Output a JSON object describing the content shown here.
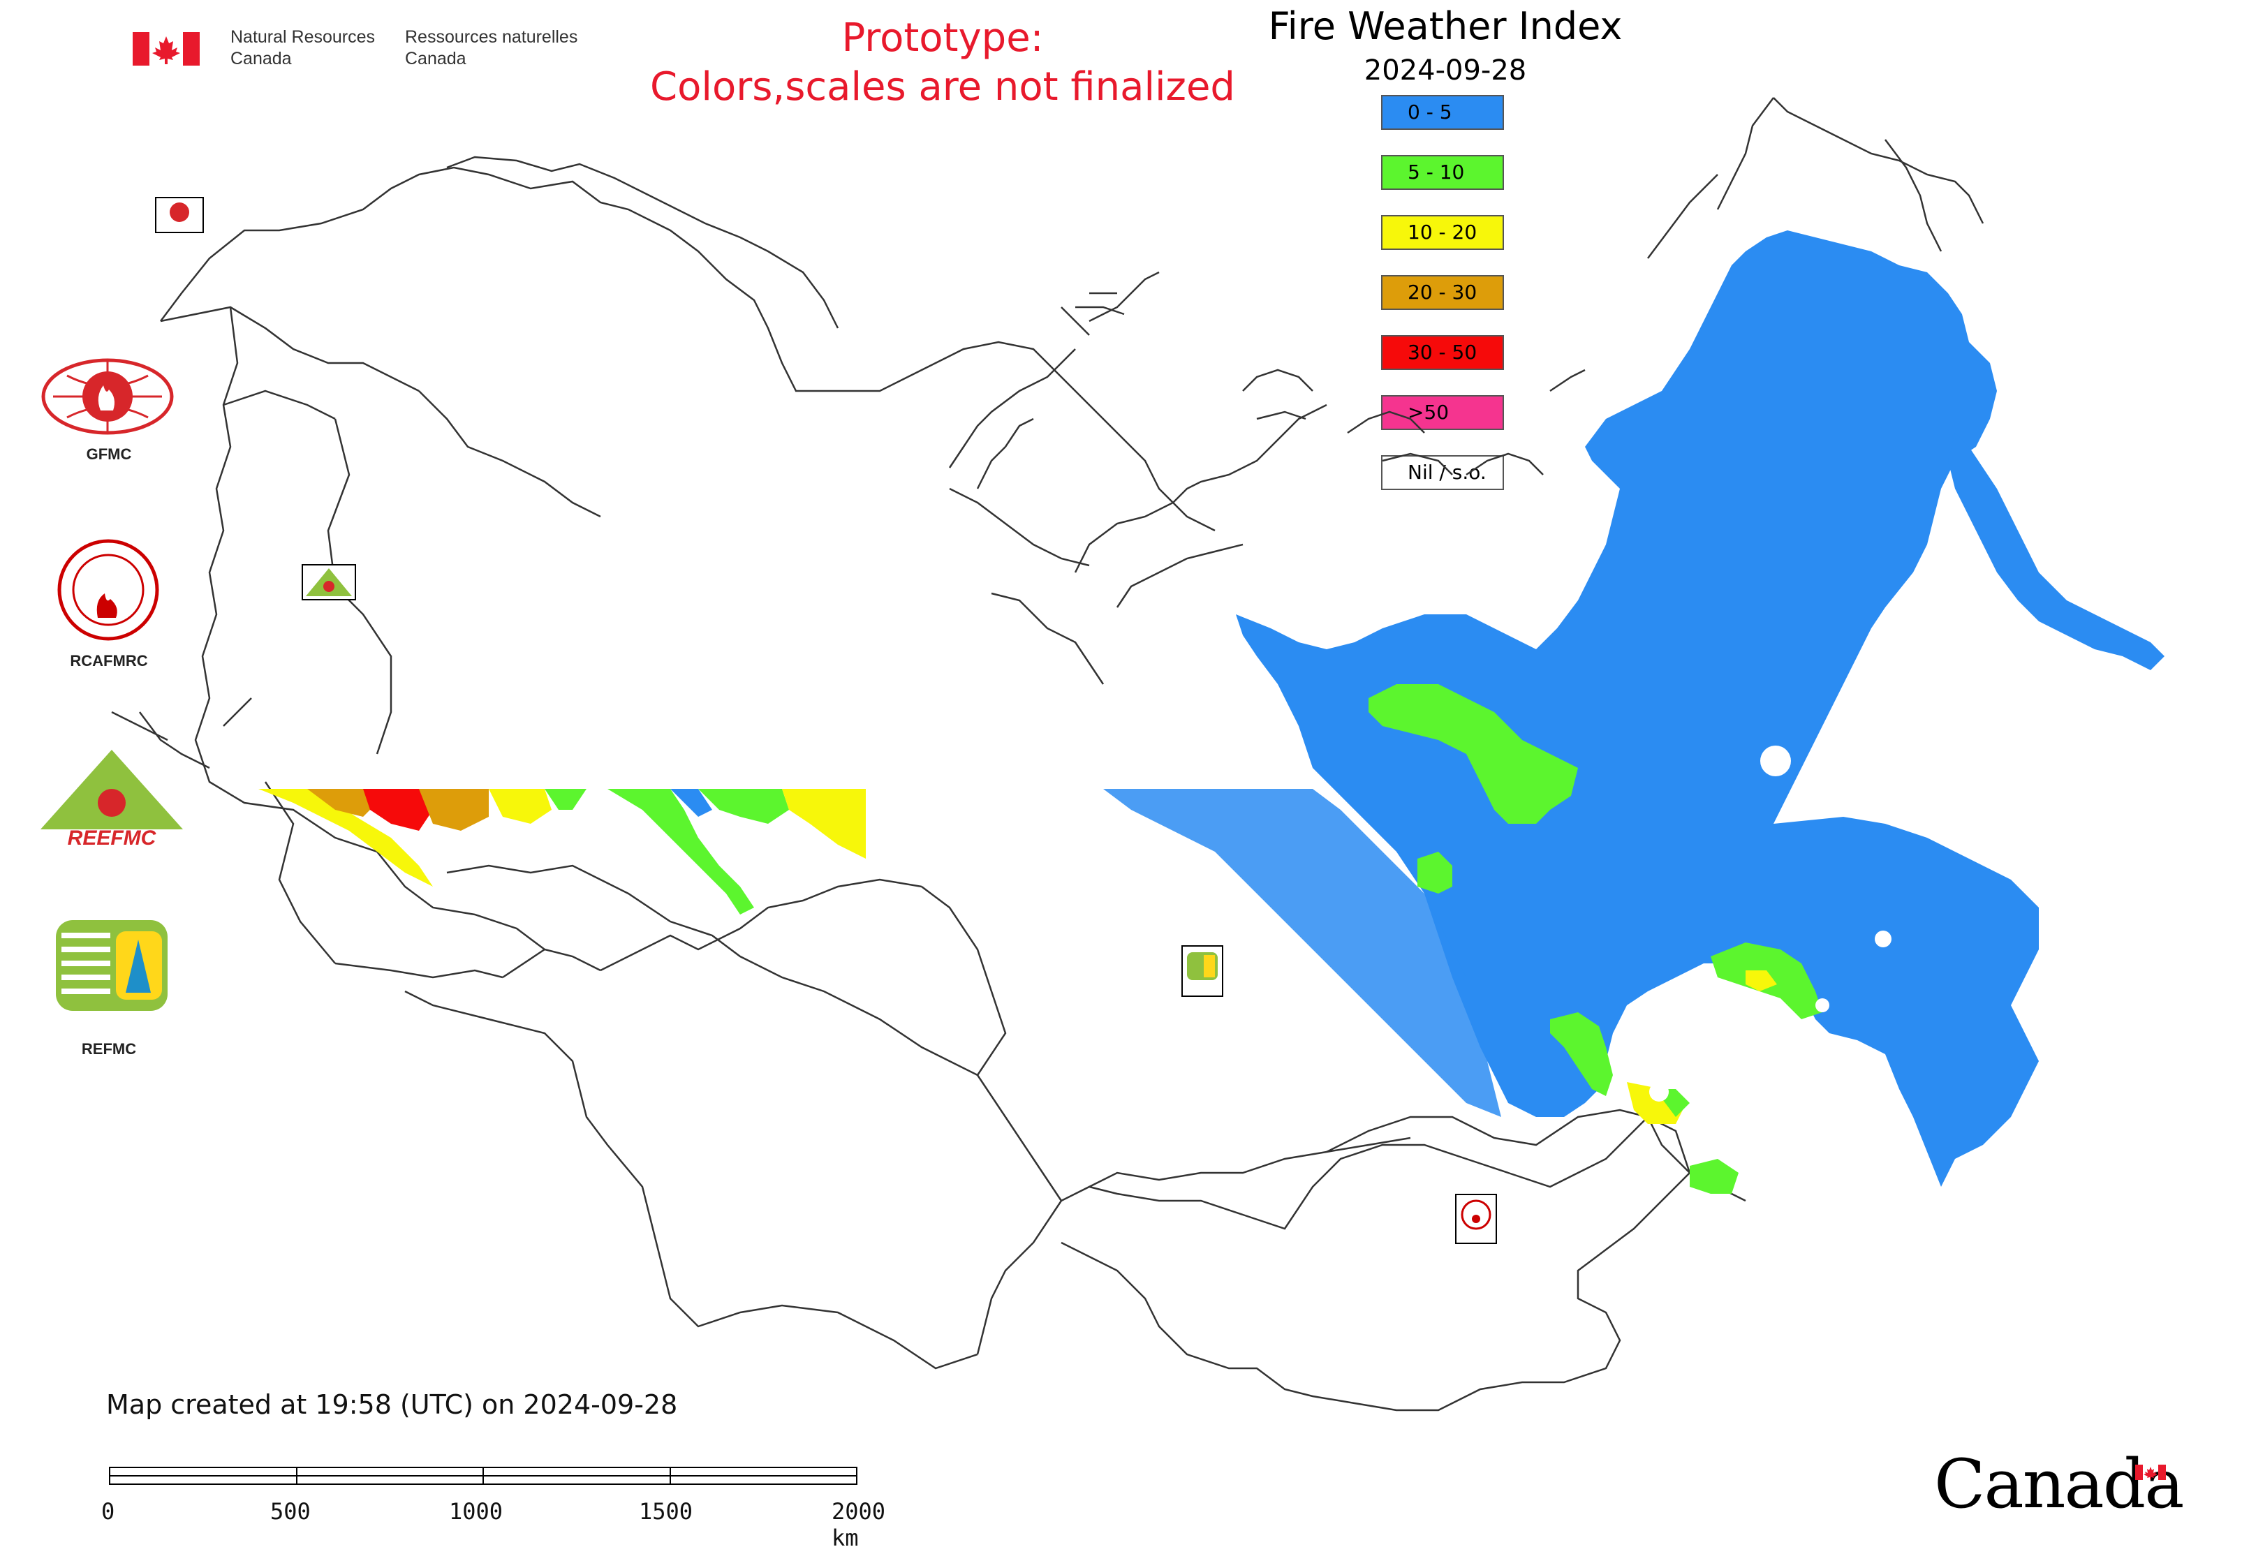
{
  "header": {
    "agency_en_line1": "Natural Resources",
    "agency_en_line2": "Canada",
    "agency_fr_line1": "Ressources naturelles",
    "agency_fr_line2": "Canada",
    "prototype_line1": "Prototype:",
    "prototype_line2": "Colors,scales are not finalized",
    "title": "Fire Weather Index",
    "date": "2024-09-28"
  },
  "legend": [
    {
      "label": "0 - 5",
      "color": "#2b8cf2"
    },
    {
      "label": "5 - 10",
      "color": "#5cf52e"
    },
    {
      "label": "10 - 20",
      "color": "#f7f70a"
    },
    {
      "label": "20 - 30",
      "color": "#dd9d0a"
    },
    {
      "label": "30 - 50",
      "color": "#f60a0a"
    },
    {
      "label": ">50",
      "color": "#f5348f"
    },
    {
      "label": "Nil / s.o.",
      "color": "#ffffff"
    }
  ],
  "side_logos": {
    "gfmc": "GFMC",
    "rcafmrc": "RCAFMRC",
    "reefmc_text": "REEFMC",
    "refmc": "REFMC",
    "map_badge_gfmc": "GFMC",
    "map_badge_refmc": "REFMC",
    "map_badge_rcafmrc": "RCAFMRC",
    "map_badge_reefmc": "REEFMC"
  },
  "footer": {
    "created": "Map created at 19:58 (UTC) on 2024-09-28",
    "scale_labels": [
      "0",
      "500",
      "1000",
      "1500",
      "2000 km"
    ],
    "canada_wordmark": "Canada"
  }
}
